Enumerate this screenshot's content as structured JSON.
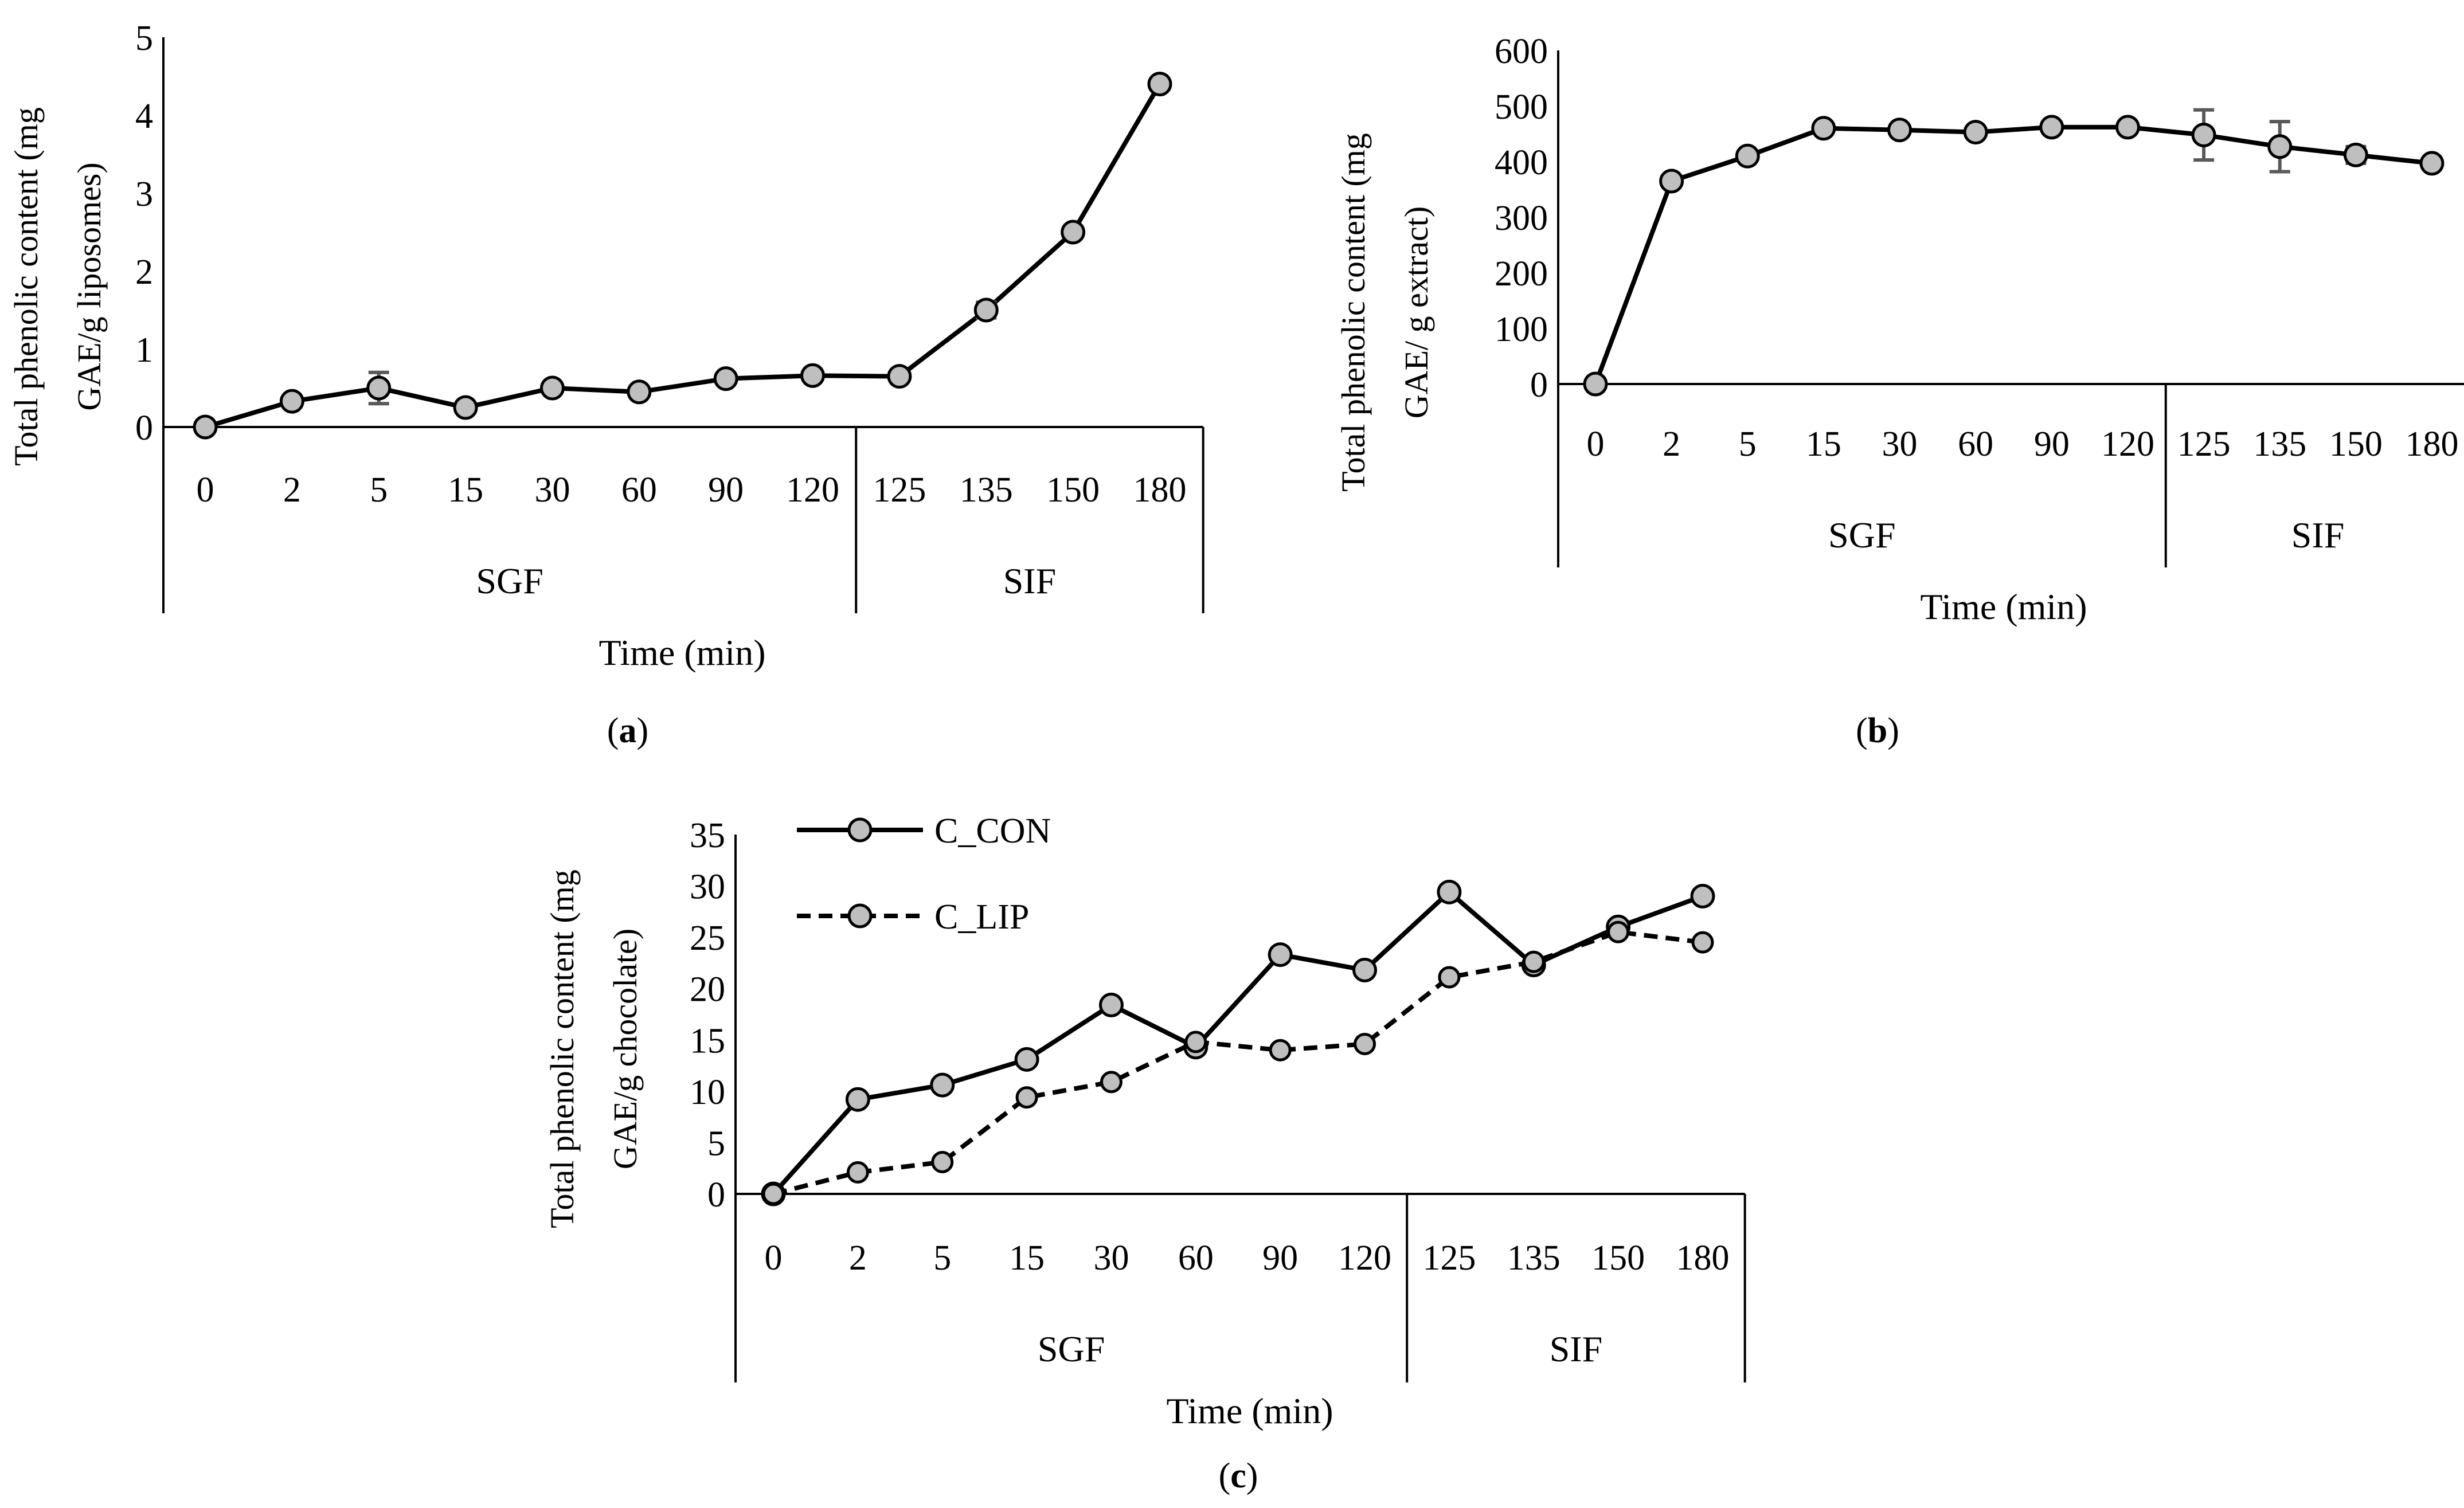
{
  "chart_data": [
    {
      "id": "a",
      "type": "line",
      "caption": "(a)",
      "categories": [
        "0",
        "2",
        "5",
        "15",
        "30",
        "60",
        "90",
        "120",
        "125",
        "135",
        "150",
        "180"
      ],
      "groups": [
        {
          "label": "SGF",
          "from": 0,
          "to": 7
        },
        {
          "label": "SIF",
          "from": 8,
          "to": 11
        }
      ],
      "series": [
        {
          "name": "",
          "style": "solid",
          "values": [
            0,
            0.33,
            0.5,
            0.25,
            0.5,
            0.45,
            0.62,
            0.66,
            0.65,
            1.5,
            2.5,
            4.4
          ],
          "errors": [
            0,
            0,
            0.2,
            0,
            0,
            0,
            0,
            0,
            0,
            0.1,
            0,
            0
          ]
        }
      ],
      "ylim": [
        0,
        5
      ],
      "yticks": [
        "0",
        "1",
        "2",
        "3",
        "4",
        "5"
      ],
      "ylabel_lines": [
        "Total phenolic content (mg",
        "GAE/g liposomes)"
      ],
      "xlabel": "Time (min)"
    },
    {
      "id": "b",
      "type": "line",
      "caption": "(b)",
      "categories": [
        "0",
        "2",
        "5",
        "15",
        "30",
        "60",
        "90",
        "120",
        "125",
        "135",
        "150",
        "180"
      ],
      "groups": [
        {
          "label": "SGF",
          "from": 0,
          "to": 7
        },
        {
          "label": "SIF",
          "from": 8,
          "to": 11
        }
      ],
      "series": [
        {
          "name": "",
          "style": "solid",
          "values": [
            0,
            365,
            410,
            460,
            457,
            453,
            462,
            462,
            448,
            427,
            412,
            397
          ],
          "errors": [
            0,
            0,
            0,
            0,
            0,
            0,
            0,
            0,
            45,
            45,
            15,
            0
          ]
        }
      ],
      "ylim": [
        0,
        600
      ],
      "yticks": [
        "0",
        "100",
        "200",
        "300",
        "400",
        "500",
        "600"
      ],
      "ylabel_lines": [
        "Total phenolic content (mg",
        "GAE/ g extract)"
      ],
      "xlabel": "Time (min)"
    },
    {
      "id": "c",
      "type": "line",
      "caption": "(c)",
      "categories": [
        "0",
        "2",
        "5",
        "15",
        "30",
        "60",
        "90",
        "120",
        "125",
        "135",
        "150",
        "180"
      ],
      "groups": [
        {
          "label": "SGF",
          "from": 0,
          "to": 7
        },
        {
          "label": "SIF",
          "from": 8,
          "to": 11
        }
      ],
      "series": [
        {
          "name": "C_CON",
          "style": "solid",
          "values": [
            0,
            9.2,
            10.6,
            13.1,
            18.4,
            14.3,
            23.3,
            21.8,
            29.4,
            22.3,
            26.0,
            29.0
          ],
          "errors": [
            0,
            0,
            0,
            0,
            0,
            0,
            0,
            0,
            0,
            0,
            0,
            0
          ]
        },
        {
          "name": "C_LIP",
          "style": "dashed",
          "values": [
            0,
            2.1,
            3.1,
            9.4,
            10.9,
            14.8,
            14.0,
            14.6,
            21.1,
            22.6,
            25.5,
            24.5
          ],
          "errors": [
            0,
            0,
            0,
            0,
            0,
            0,
            0,
            0,
            0,
            0,
            0,
            0
          ]
        }
      ],
      "ylim": [
        0,
        35
      ],
      "yticks": [
        "0",
        "5",
        "10",
        "15",
        "20",
        "25",
        "30",
        "35"
      ],
      "ylabel_lines": [
        "Total phenolic content (mg",
        "GAE/g chocolate)"
      ],
      "xlabel": "Time (min)",
      "legend_position": "top-left"
    }
  ]
}
